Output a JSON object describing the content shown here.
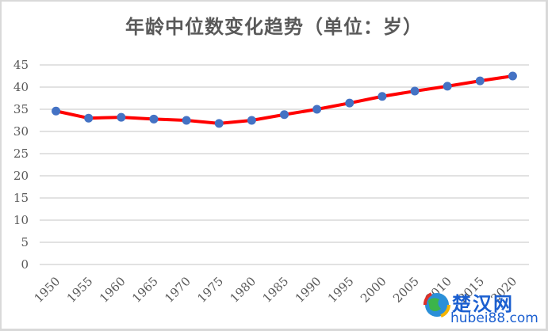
{
  "title": "年龄中位数变化趋势（单位：岁）",
  "chart_data": {
    "type": "line",
    "title": "年龄中位数变化趋势（单位：岁）",
    "xlabel": "",
    "ylabel": "",
    "categories": [
      "1950",
      "1955",
      "1960",
      "1965",
      "1970",
      "1975",
      "1980",
      "1985",
      "1990",
      "1995",
      "2000",
      "2005",
      "2010",
      "2015",
      "2020"
    ],
    "series": [
      {
        "name": "年龄中位数",
        "values": [
          34.6,
          33.0,
          33.2,
          32.8,
          32.5,
          31.8,
          32.5,
          33.8,
          35.0,
          36.4,
          37.9,
          39.1,
          40.2,
          41.4,
          42.5
        ],
        "line_color": "#ff0000",
        "marker_color": "#4472c4"
      }
    ],
    "ylim": [
      0,
      45
    ],
    "yticks": [
      0,
      5,
      10,
      15,
      20,
      25,
      30,
      35,
      40,
      45
    ],
    "grid": true,
    "legend": "none",
    "x_tick_rotation": -45
  },
  "colors": {
    "line": "#ff0000",
    "marker": "#4472c4",
    "grid": "#d9d9d9",
    "text": "#595959"
  },
  "watermark": {
    "cn": "楚汉网",
    "en": "hubei88.com"
  }
}
